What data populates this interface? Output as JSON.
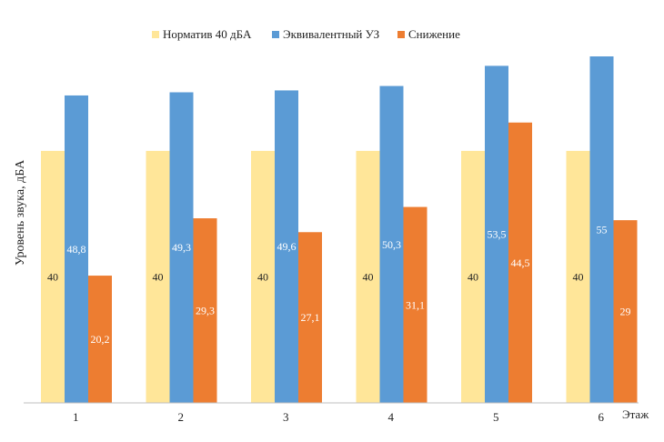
{
  "chart_data": {
    "type": "bar",
    "title": "",
    "xlabel": "Этаж",
    "ylabel": "Уровень звука, дБА",
    "categories": [
      "1",
      "2",
      "3",
      "4",
      "5",
      "6"
    ],
    "ylim": [
      0,
      58
    ],
    "grid": false,
    "legend": "top-center",
    "series": [
      {
        "name": "Норматив 40 дБА",
        "color": "#FFE699",
        "label_color": "#222222",
        "values": [
          40,
          40,
          40,
          40,
          40,
          40
        ]
      },
      {
        "name": "Эквивалентный УЗ",
        "color": "#5B9BD5",
        "label_color": "#ffffff",
        "values": [
          48.8,
          49.3,
          49.6,
          50.3,
          53.5,
          55
        ]
      },
      {
        "name": "Снижение",
        "color": "#ED7D31",
        "label_color": "#ffffff",
        "values": [
          20.2,
          29.3,
          27.1,
          31.1,
          44.5,
          29
        ]
      }
    ]
  }
}
